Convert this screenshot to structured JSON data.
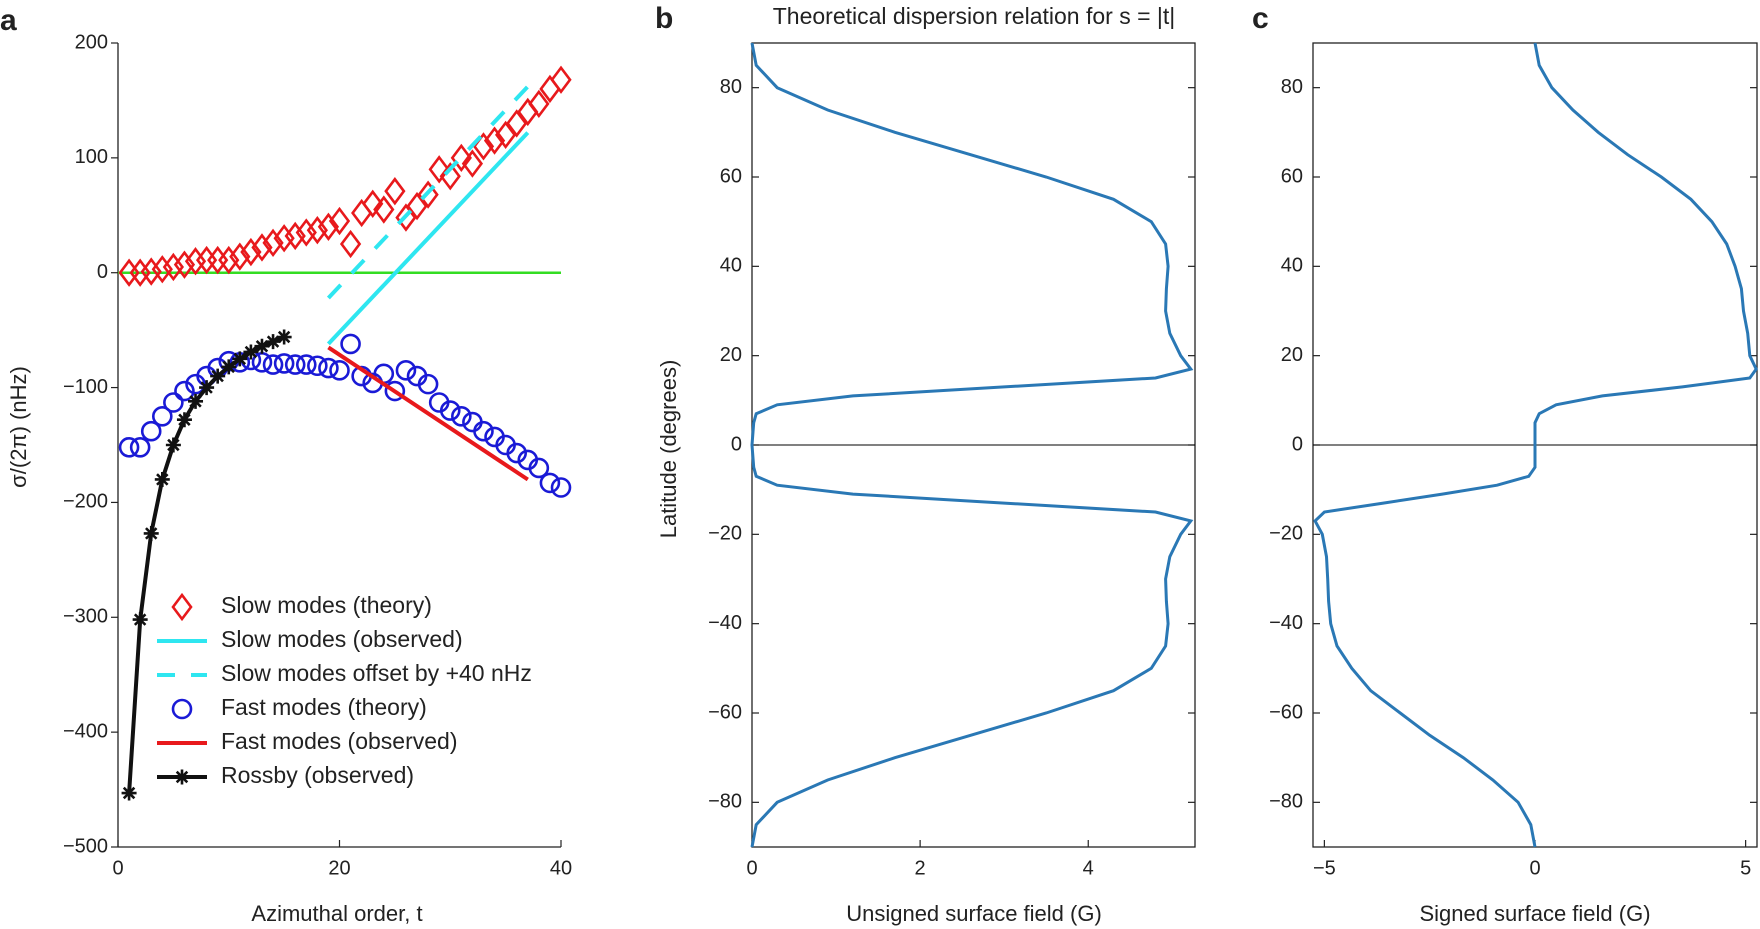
{
  "chart_data": [
    {
      "type": "line",
      "panel_label": "a",
      "x_label": "Azimuthal order, t",
      "y_label": "σ/(2π) (nHz)",
      "xlim": [
        0,
        40
      ],
      "xticks": [
        0,
        20,
        40
      ],
      "ylim": [
        -500,
        200
      ],
      "yticks": [
        200,
        100,
        0,
        {
          "value": -100,
          "label": "−100"
        },
        {
          "value": -200,
          "label": "−200"
        },
        {
          "value": -300,
          "label": "−300"
        },
        {
          "value": -400,
          "label": "−400"
        },
        {
          "value": -500,
          "label": "−500"
        }
      ],
      "legend": "lower left",
      "reference_line": {
        "y": 0,
        "color": "#33dd22"
      },
      "series": [
        {
          "name": "Slow modes (theory)",
          "color": "#e8191c",
          "marker": "diamond",
          "line": "none",
          "x": [
            1,
            2,
            3,
            4,
            5,
            6,
            7,
            8,
            9,
            10,
            11,
            12,
            13,
            14,
            15,
            16,
            17,
            18,
            19,
            20,
            21,
            22,
            23,
            24,
            25,
            26,
            27,
            28,
            29,
            30,
            31,
            32,
            33,
            34,
            35,
            36,
            37,
            38,
            39,
            40
          ],
          "values": [
            0,
            0,
            1,
            3,
            5,
            7,
            10,
            11,
            11,
            11,
            14,
            18,
            22,
            26,
            30,
            32,
            35,
            37,
            40,
            45,
            25,
            52,
            60,
            55,
            71,
            48,
            58,
            68,
            90,
            84,
            100,
            95,
            110,
            115,
            120,
            130,
            140,
            147,
            160,
            168
          ]
        },
        {
          "name": "Slow modes (observed)",
          "color": "#2ee6f0",
          "marker": "none",
          "line": "solid",
          "x": [
            19,
            37
          ],
          "values": [
            -62,
            122
          ]
        },
        {
          "name": "Slow modes offset by +40 nHz",
          "color": "#2ee6f0",
          "marker": "none",
          "line": "dashed",
          "x": [
            19,
            37
          ],
          "values": [
            -22,
            162
          ]
        },
        {
          "name": "Fast modes (theory)",
          "color": "#1a1ad6",
          "marker": "circle",
          "line": "none",
          "x": [
            1,
            2,
            3,
            4,
            5,
            6,
            7,
            8,
            9,
            10,
            11,
            12,
            13,
            14,
            15,
            16,
            17,
            18,
            19,
            20,
            21,
            22,
            23,
            24,
            25,
            26,
            27,
            28,
            29,
            30,
            31,
            32,
            33,
            34,
            35,
            36,
            37,
            38,
            39,
            40
          ],
          "values": [
            -152,
            -152,
            -138,
            -125,
            -113,
            -103,
            -97,
            -90,
            -83,
            -77,
            -78,
            -76,
            -78,
            -80,
            -79,
            -80,
            -80,
            -81,
            -83,
            -85,
            -62,
            -90,
            -96,
            -88,
            -103,
            -85,
            -90,
            -97,
            -113,
            -120,
            -125,
            -130,
            -138,
            -143,
            -150,
            -157,
            -163,
            -170,
            -183,
            -187
          ]
        },
        {
          "name": "Fast modes (observed)",
          "color": "#e8191c",
          "marker": "none",
          "line": "solid",
          "x": [
            19,
            37
          ],
          "values": [
            -65,
            -180
          ]
        },
        {
          "name": "Rossby (observed)",
          "color": "#111111",
          "marker": "asterisk",
          "line": "solid",
          "x": [
            1,
            2,
            3,
            4,
            5,
            6,
            7,
            8,
            9,
            10,
            11,
            12,
            13,
            14,
            15
          ],
          "values": [
            -453,
            -302,
            -227,
            -180,
            -150,
            -128,
            -112,
            -100,
            -90,
            -82,
            -75,
            -69,
            -64,
            -60,
            -56
          ]
        }
      ]
    },
    {
      "type": "line",
      "panel_label": "b",
      "title": "Theoretical dispersion relation for s = |t|",
      "x_label": "Unsigned surface field (G)",
      "y_label": "Latitude (degrees)",
      "xlim": [
        0,
        5.27
      ],
      "xticks": [
        0,
        2,
        4
      ],
      "ylim": [
        -90,
        90
      ],
      "yticks": [
        {
          "value": -80,
          "label": "−80"
        },
        {
          "value": -60,
          "label": "−60"
        },
        {
          "value": -40,
          "label": "−40"
        },
        {
          "value": -20,
          "label": "−20"
        },
        0,
        20,
        40,
        60,
        80
      ],
      "reference_line": {
        "y": 0,
        "color": "#000000"
      },
      "series": [
        {
          "color": "#2a78b5",
          "marker": "none",
          "line": "solid",
          "y": [
            -90,
            -85,
            -80,
            -75,
            -70,
            -65,
            -60,
            -55,
            -50,
            -45,
            -40,
            -35,
            -30,
            -25,
            -20,
            -17,
            -15,
            -13,
            -11,
            -9,
            -7,
            -5,
            0,
            5,
            7,
            9,
            11,
            13,
            15,
            17,
            20,
            25,
            30,
            35,
            40,
            45,
            50,
            55,
            60,
            65,
            70,
            75,
            80,
            85,
            90
          ],
          "values": [
            0,
            0.05,
            0.3,
            0.9,
            1.7,
            2.6,
            3.5,
            4.3,
            4.75,
            4.92,
            4.95,
            4.93,
            4.92,
            4.97,
            5.1,
            5.22,
            4.8,
            3.0,
            1.2,
            0.3,
            0.05,
            0.02,
            0,
            0.02,
            0.05,
            0.3,
            1.2,
            3.0,
            4.8,
            5.22,
            5.1,
            4.97,
            4.92,
            4.93,
            4.95,
            4.92,
            4.75,
            4.3,
            3.5,
            2.6,
            1.7,
            0.9,
            0.3,
            0.05,
            0
          ]
        }
      ]
    },
    {
      "type": "line",
      "panel_label": "c",
      "x_label": "Signed surface field (G)",
      "xlim": [
        -5.27,
        5.27
      ],
      "xticks": [
        {
          "value": -5,
          "label": "−5"
        },
        0,
        5
      ],
      "ylim": [
        -90,
        90
      ],
      "yticks": [
        {
          "value": -80,
          "label": "−80"
        },
        {
          "value": -60,
          "label": "−60"
        },
        {
          "value": -40,
          "label": "−40"
        },
        {
          "value": -20,
          "label": "−20"
        },
        0,
        20,
        40,
        60,
        80
      ],
      "reference_line": {
        "y": 0,
        "color": "#000000"
      },
      "series": [
        {
          "color": "#2a78b5",
          "marker": "none",
          "line": "solid",
          "y": [
            -90,
            -85,
            -80,
            -75,
            -70,
            -65,
            -60,
            -55,
            -50,
            -45,
            -40,
            -35,
            -30,
            -25,
            -20,
            -17,
            -15,
            -13,
            -11,
            -9,
            -7,
            -5,
            0,
            5,
            7,
            9,
            11,
            13,
            15,
            17,
            20,
            25,
            30,
            35,
            40,
            45,
            50,
            55,
            60,
            65,
            70,
            75,
            80,
            85,
            90
          ],
          "values": [
            0,
            -0.1,
            -0.4,
            -1.0,
            -1.7,
            -2.5,
            -3.2,
            -3.9,
            -4.35,
            -4.7,
            -4.85,
            -4.9,
            -4.92,
            -4.95,
            -5.05,
            -5.22,
            -5.0,
            -3.6,
            -2.2,
            -0.9,
            -0.15,
            0,
            0,
            0,
            0.1,
            0.5,
            1.6,
            3.5,
            5.1,
            5.25,
            5.1,
            5.05,
            4.95,
            4.9,
            4.75,
            4.55,
            4.2,
            3.7,
            3.0,
            2.2,
            1.5,
            0.9,
            0.4,
            0.1,
            0
          ]
        }
      ]
    }
  ]
}
